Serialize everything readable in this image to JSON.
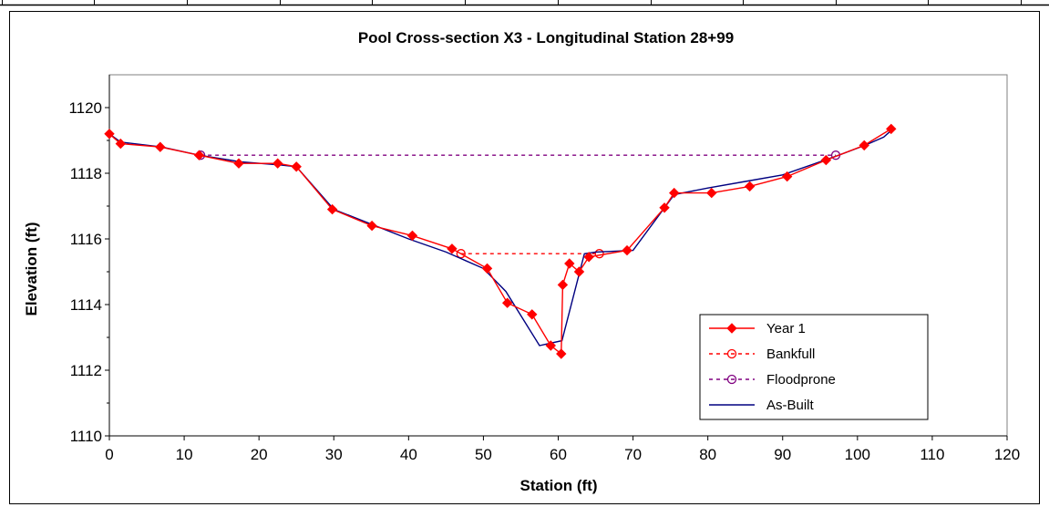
{
  "chart_data": {
    "type": "line",
    "title": "Pool Cross-section X3 - Longitudinal Station 28+99",
    "xlabel": "Station (ft)",
    "ylabel": "Elevation (ft)",
    "xlim": [
      0,
      120
    ],
    "ylim": [
      1110,
      1121
    ],
    "xticks": [
      "0",
      "10",
      "20",
      "30",
      "40",
      "50",
      "60",
      "70",
      "80",
      "90",
      "100",
      "110",
      "120"
    ],
    "yticks": [
      "1110",
      "1112",
      "1114",
      "1116",
      "1118",
      "1120"
    ],
    "grid": false,
    "legend_position": "bottom-right",
    "colors": {
      "year1": "#ff0000",
      "bankfull": "#ff0000",
      "floodprone": "#800080",
      "asbuilt": "#000080"
    },
    "series": [
      {
        "name": "Year 1",
        "style": "solid-diamond",
        "points": [
          [
            0,
            1119.2
          ],
          [
            1.5,
            1118.9
          ],
          [
            6.8,
            1118.8
          ],
          [
            12,
            1118.55
          ],
          [
            17.3,
            1118.3
          ],
          [
            22.5,
            1118.3
          ],
          [
            25,
            1118.2
          ],
          [
            29.8,
            1116.9
          ],
          [
            35.1,
            1116.4
          ],
          [
            40.5,
            1116.1
          ],
          [
            45.8,
            1115.7
          ],
          [
            50.5,
            1115.1
          ],
          [
            53.2,
            1114.05
          ],
          [
            56.5,
            1113.7
          ],
          [
            59,
            1112.75
          ],
          [
            60.4,
            1112.5
          ],
          [
            60.6,
            1114.6
          ],
          [
            61.5,
            1115.25
          ],
          [
            62.8,
            1115.0
          ],
          [
            64.1,
            1115.45
          ],
          [
            69.2,
            1115.65
          ],
          [
            74.2,
            1116.95
          ],
          [
            75.5,
            1117.4
          ],
          [
            80.5,
            1117.4
          ],
          [
            85.6,
            1117.6
          ],
          [
            90.6,
            1117.9
          ],
          [
            95.8,
            1118.4
          ],
          [
            100.9,
            1118.85
          ],
          [
            104.5,
            1119.35
          ]
        ]
      },
      {
        "name": "Bankfull",
        "style": "dashed-circle",
        "points": [
          [
            47,
            1115.55
          ],
          [
            65.5,
            1115.55
          ]
        ]
      },
      {
        "name": "Floodprone",
        "style": "dashed-circle",
        "points": [
          [
            12.2,
            1118.55
          ],
          [
            97.1,
            1118.55
          ]
        ]
      },
      {
        "name": "As-Built",
        "style": "solid",
        "points": [
          [
            0,
            1119.2
          ],
          [
            1.5,
            1118.95
          ],
          [
            7,
            1118.8
          ],
          [
            12,
            1118.55
          ],
          [
            17.5,
            1118.35
          ],
          [
            23,
            1118.25
          ],
          [
            25,
            1118.2
          ],
          [
            30,
            1116.9
          ],
          [
            35,
            1116.45
          ],
          [
            40,
            1116.0
          ],
          [
            45,
            1115.6
          ],
          [
            50,
            1115.1
          ],
          [
            53,
            1114.4
          ],
          [
            57.5,
            1112.75
          ],
          [
            58.5,
            1112.8
          ],
          [
            60.5,
            1112.9
          ],
          [
            63.5,
            1115.55
          ],
          [
            65,
            1115.6
          ],
          [
            70,
            1115.65
          ],
          [
            75.5,
            1117.35
          ],
          [
            80,
            1117.55
          ],
          [
            85,
            1117.75
          ],
          [
            90,
            1117.95
          ],
          [
            95,
            1118.35
          ],
          [
            97.5,
            1118.55
          ],
          [
            101,
            1118.85
          ],
          [
            103.5,
            1119.1
          ],
          [
            104.5,
            1119.3
          ]
        ]
      }
    ]
  }
}
